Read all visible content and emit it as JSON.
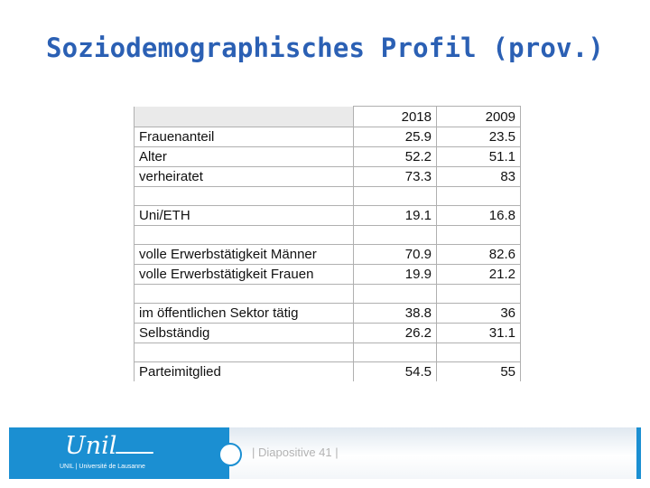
{
  "slide": {
    "title": "Soziodemographisches Profil (prov.)"
  },
  "table": {
    "columns": [
      "",
      "2018",
      "2009"
    ],
    "rows": [
      {
        "label": "Frauenanteil",
        "v2018": "25.9",
        "v2009": "23.5"
      },
      {
        "label": "Alter",
        "v2018": "52.2",
        "v2009": "51.1"
      },
      {
        "label": "verheiratet",
        "v2018": "73.3",
        "v2009": "83"
      },
      {
        "label": "Uni/ETH",
        "v2018": "19.1",
        "v2009": "16.8"
      },
      {
        "label": "volle Erwerbstätigkeit Männer",
        "v2018": "70.9",
        "v2009": "82.6"
      },
      {
        "label": "volle Erwerbstätigkeit Frauen",
        "v2018": "19.9",
        "v2009": "21.2"
      },
      {
        "label": "im öffentlichen Sektor tätig",
        "v2018": "38.8",
        "v2009": "36"
      },
      {
        "label": "Selbständig",
        "v2018": "26.2",
        "v2009": "31.1"
      },
      {
        "label": "Parteimitglied",
        "v2018": "54.5",
        "v2009": "55"
      }
    ]
  },
  "footer": {
    "logo_text": "Unil",
    "institution": "UNIL | Université de Lausanne",
    "slide_number": "| Diapositive 41 |",
    "brand_color": "#1b8fd2",
    "title_color": "#2b60b4"
  }
}
